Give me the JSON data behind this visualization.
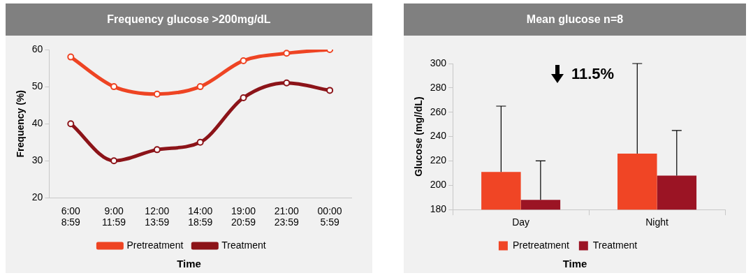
{
  "chart_data": [
    {
      "type": "line",
      "title": "Frequency glucose >200mg/dL",
      "xlabel": "Time",
      "ylabel": "Frequency (%)",
      "categories": [
        "6:00\n8:59",
        "9:00\n11:59",
        "12:00\n13:59",
        "14:00\n18:59",
        "19:00\n20:59",
        "21:00\n23:59",
        "00:00\n5:59"
      ],
      "series": [
        {
          "name": "Pretreatment",
          "color": "#ee4423",
          "values": [
            58,
            50,
            48,
            50,
            57,
            59,
            60
          ]
        },
        {
          "name": "Treatment",
          "color": "#8c1419",
          "values": [
            40,
            30,
            33,
            35,
            47,
            51,
            49
          ]
        }
      ],
      "ylim": [
        20,
        60
      ],
      "yticks": [
        20,
        30,
        40,
        50,
        60
      ],
      "grid": false,
      "legend": "bottom",
      "marker": "circle",
      "line_style": "solid"
    },
    {
      "type": "bar",
      "title": "Mean glucose n=8",
      "xlabel": "Time",
      "ylabel": "Glucose (mg//dL)",
      "annotations": [
        "11.5%"
      ],
      "categories": [
        "Day",
        "Night"
      ],
      "series": [
        {
          "name": "Pretreatment",
          "color": "#f04525",
          "values": [
            211,
            226
          ],
          "errors": [
            [
              211,
              265
            ],
            [
              226,
              300
            ]
          ]
        },
        {
          "name": "Treatment",
          "color": "#9b1424",
          "values": [
            188,
            208
          ],
          "errors": [
            [
              188,
              220
            ],
            [
              208,
              245
            ]
          ]
        }
      ],
      "ylim": [
        180,
        300
      ],
      "yticks": [
        180,
        200,
        220,
        240,
        260,
        280,
        300
      ],
      "grid": false,
      "legend": "bottom"
    }
  ]
}
